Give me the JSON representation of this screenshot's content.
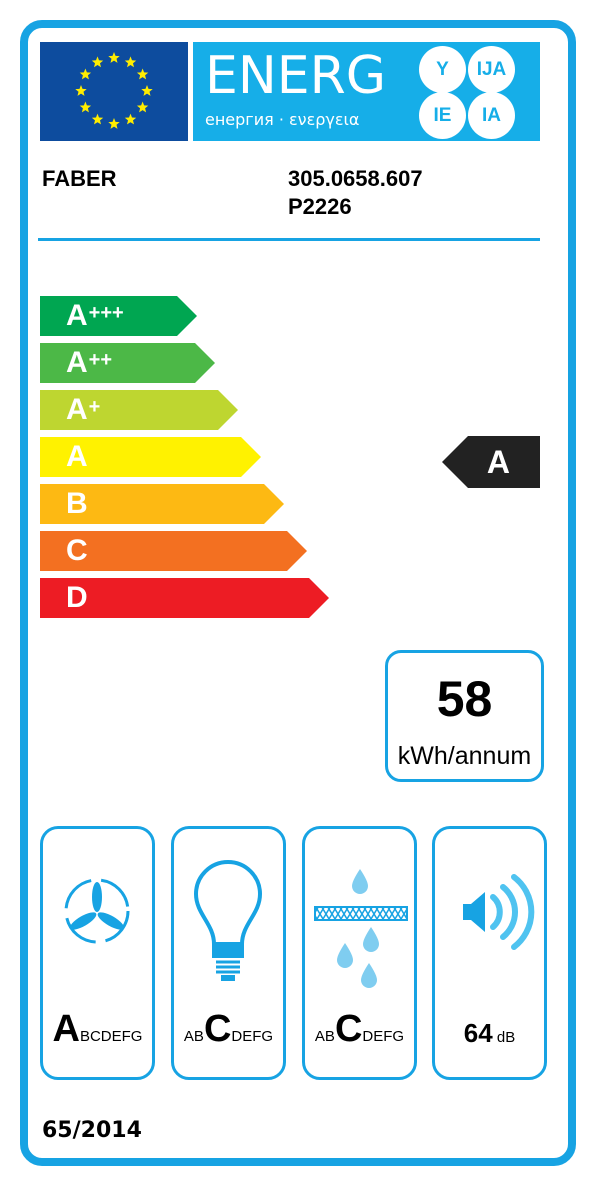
{
  "header": {
    "banner_title": "ENERG",
    "banner_subtitle": "енергия · ενεργεια",
    "suffixes": [
      "Y",
      "IJA",
      "IE",
      "IA"
    ],
    "supplier": "FABER",
    "model_line1": "305.0658.607",
    "model_line2": "P2226"
  },
  "scale": [
    {
      "letter": "A",
      "plus": "+++",
      "color": "#00a651"
    },
    {
      "letter": "A",
      "plus": "++",
      "color": "#4cb847"
    },
    {
      "letter": "A",
      "plus": "+",
      "color": "#bed630"
    },
    {
      "letter": "A",
      "plus": "",
      "color": "#fff200"
    },
    {
      "letter": "B",
      "plus": "",
      "color": "#fdb913"
    },
    {
      "letter": "C",
      "plus": "",
      "color": "#f37021"
    },
    {
      "letter": "D",
      "plus": "",
      "color": "#ed1c24"
    }
  ],
  "rating": {
    "class": "A"
  },
  "consumption": {
    "value": "58",
    "unit": "kWh/annum"
  },
  "cards": [
    {
      "icon": "fan-icon",
      "pre": "",
      "big": "A",
      "post": "BCDEFG"
    },
    {
      "icon": "light-bulb-icon",
      "pre": "AB",
      "big": "C",
      "post": "DEFG"
    },
    {
      "icon": "grease-filter-icon",
      "pre": "AB",
      "big": "C",
      "post": "DEFG"
    },
    {
      "icon": "speaker-icon",
      "value": "64",
      "unit": "dB"
    }
  ],
  "regulation": "65/2014",
  "colors": {
    "frame": "#17a3e3",
    "flag": "#0d4c9e",
    "stars": "#ffed00",
    "banner": "#16aee8"
  }
}
